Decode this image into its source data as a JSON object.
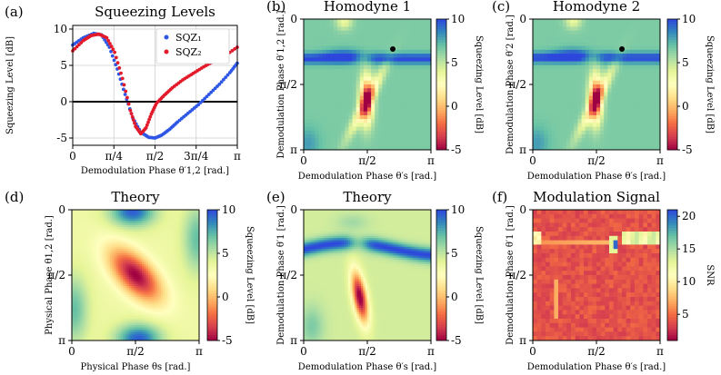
{
  "figure": {
    "panels": [
      {
        "label": "(a)",
        "title": "Squeezing Levels"
      },
      {
        "label": "(b)",
        "title": "Homodyne 1"
      },
      {
        "label": "(c)",
        "title": "Homodyne 2"
      },
      {
        "label": "(d)",
        "title": "Theory"
      },
      {
        "label": "(e)",
        "title": "Theory"
      },
      {
        "label": "(f)",
        "title": "Modulation Signal"
      }
    ]
  },
  "chart_data": [
    {
      "id": "a",
      "type": "scatter",
      "title": "Squeezing Levels",
      "xlabel": "Demodulation Phase θ′1,2 [rad.]",
      "ylabel": "Squeezing Level [dB]",
      "xlim": [
        0,
        3.1416
      ],
      "ylim": [
        -6,
        10.5
      ],
      "xticks": [
        "0",
        "π/4",
        "π/2",
        "3π/4",
        "π"
      ],
      "yticks": [
        "10",
        "5",
        "0",
        "-5"
      ],
      "grid": true,
      "legend": "top-right",
      "series": [
        {
          "name": "SQZ₁",
          "color": "#2f57e6",
          "x": [
            0,
            0.2,
            0.4,
            0.55,
            0.7,
            0.85,
            1.0,
            1.15,
            1.3,
            1.45,
            1.57,
            1.7,
            1.85,
            2.0,
            2.2,
            2.4,
            2.6,
            2.8,
            3.0,
            3.14
          ],
          "y": [
            7.8,
            8.8,
            9.4,
            9.2,
            7.5,
            4.5,
            1.0,
            -2.3,
            -4.2,
            -4.9,
            -5.0,
            -4.6,
            -3.8,
            -2.8,
            -1.6,
            -0.4,
            1.0,
            2.4,
            4.0,
            5.3
          ]
        },
        {
          "name": "SQZ₂",
          "color": "#e31a2a",
          "x": [
            0,
            0.2,
            0.35,
            0.5,
            0.65,
            0.8,
            0.95,
            1.1,
            1.2,
            1.3,
            1.4,
            1.5,
            1.6,
            1.75,
            1.9,
            2.1,
            2.3,
            2.5,
            2.7,
            2.9,
            3.14
          ],
          "y": [
            7.0,
            8.4,
            9.1,
            9.3,
            8.8,
            6.8,
            3.2,
            -1.2,
            -3.4,
            -4.4,
            -3.6,
            -1.7,
            -0.2,
            0.9,
            1.9,
            3.0,
            3.9,
            4.8,
            5.6,
            6.3,
            7.5
          ]
        }
      ]
    },
    {
      "id": "b",
      "type": "heatmap",
      "title": "Homodyne 1",
      "xlabel": "Demodulation Phase θ′s [rad.]",
      "ylabel": "Demodulation Phase θ′1,2 [rad.]",
      "xticks": [
        "0",
        "π/2",
        "π"
      ],
      "yticks": [
        "0",
        "π/2",
        "π"
      ],
      "colorbar": {
        "label": "Squeezing Level [dB]",
        "ticks": [
          "10",
          "5",
          "0",
          "-5"
        ],
        "range": [
          -5,
          10
        ]
      },
      "pixelated": true,
      "marker": {
        "x": 2.2,
        "y": 0.72
      }
    },
    {
      "id": "c",
      "type": "heatmap",
      "title": "Homodyne 2",
      "xlabel": "Demodulation Phase θ′s [rad.]",
      "ylabel": "Demodulation Phase θ′2 [rad.]",
      "xticks": [
        "0",
        "π/2",
        "π"
      ],
      "yticks": [
        "0",
        "π/2",
        "π"
      ],
      "colorbar": {
        "label": "Squeezing Level [dB]",
        "ticks": [
          "10",
          "5",
          "0",
          "-5"
        ],
        "range": [
          -5,
          10
        ]
      },
      "pixelated": true,
      "marker": {
        "x": 2.2,
        "y": 0.72
      }
    },
    {
      "id": "d",
      "type": "heatmap",
      "title": "Theory",
      "xlabel": "Physical Phase θs [rad.]",
      "ylabel": "Physical Phase θ1,2 [rad.]",
      "xticks": [
        "0",
        "π/2",
        "π"
      ],
      "yticks": [
        "0",
        "π/2",
        "π"
      ],
      "colorbar": {
        "label": "Squeezing Level [dB]",
        "ticks": [
          "10",
          "5",
          "0",
          "-5"
        ],
        "range": [
          -5,
          10
        ]
      },
      "pixelated": false
    },
    {
      "id": "e",
      "type": "heatmap",
      "title": "Theory",
      "xlabel": "Demodulation Phase θ′s [rad.]",
      "ylabel": "Demodulation Phase θ′1 [rad.]",
      "xticks": [
        "0",
        "π/2",
        "π"
      ],
      "yticks": [
        "0",
        "π/2",
        "π"
      ],
      "colorbar": {
        "label": "Squeezing Level [dB]",
        "ticks": [
          "10",
          "5",
          "0",
          "-5"
        ],
        "range": [
          -5,
          10
        ]
      },
      "pixelated": false
    },
    {
      "id": "f",
      "type": "heatmap",
      "title": "Modulation Signal",
      "xlabel": "Demodulation Phase θ′s [rad.]",
      "ylabel": "Demodulation Phase θ′1 [rad.]",
      "xticks": [
        "0",
        "π/2",
        "π"
      ],
      "yticks": [
        "0",
        "π/2",
        "π"
      ],
      "colorbar": {
        "label": "SNR",
        "ticks": [
          "20",
          "15",
          "10",
          "5"
        ],
        "range": [
          1,
          21
        ]
      },
      "pixelated": true
    }
  ]
}
